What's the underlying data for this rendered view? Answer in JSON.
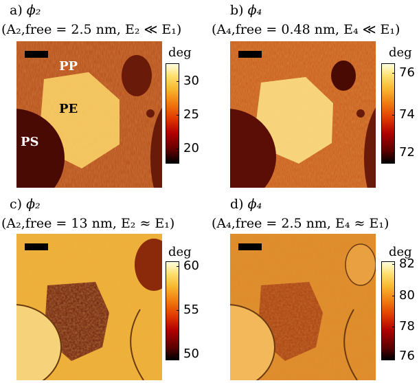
{
  "panels": [
    {
      "label_letter": "a)",
      "label_symbol": "ϕ₂",
      "condition": "(A₂,free = 2.5 nm, E₂ ≪ E₁)",
      "unit": "deg",
      "ticks": [
        "30",
        "25",
        "20"
      ],
      "regions": [
        "PP",
        "PE",
        "PS"
      ],
      "cmap": "hot"
    },
    {
      "label_letter": "b)",
      "label_symbol": "ϕ₄",
      "condition": "(A₄,free = 0.48 nm, E₄ ≪ E₁)",
      "unit": "deg",
      "ticks": [
        "76",
        "74",
        "72"
      ],
      "regions": [],
      "cmap": "hot"
    },
    {
      "label_letter": "c)",
      "label_symbol": "ϕ₂",
      "condition": "(A₂,free = 13 nm, E₂ ≈ E₁)",
      "unit": "deg",
      "ticks": [
        "60",
        "55",
        "50"
      ],
      "regions": [],
      "cmap": "hot"
    },
    {
      "label_letter": "d)",
      "label_symbol": "ϕ₄",
      "condition": "(A₄,free = 2.5 nm, E₄ ≈ E₁)",
      "unit": "deg",
      "ticks": [
        "82",
        "80",
        "78",
        "76"
      ],
      "regions": [],
      "cmap": "hot"
    }
  ]
}
